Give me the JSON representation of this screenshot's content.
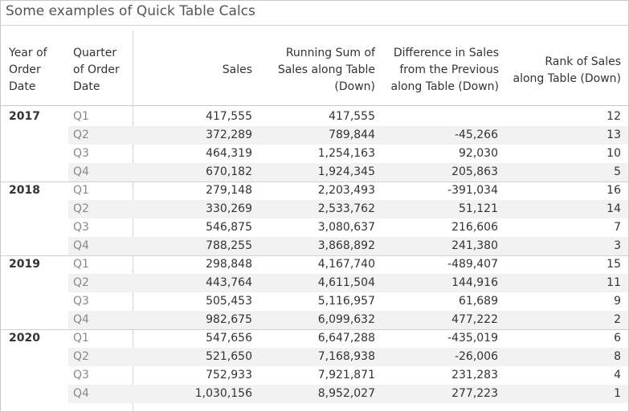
{
  "title": "Some examples of Quick Table Calcs",
  "headers": {
    "year": [
      "Year of",
      "Order",
      "Date"
    ],
    "quarter": [
      "Quarter",
      "of Order",
      "Date"
    ],
    "sales": [
      "Sales"
    ],
    "running_sum": [
      "Running Sum of",
      "Sales along Table",
      "(Down)"
    ],
    "difference": [
      "Difference in Sales",
      "from the Previous",
      "along Table (Down)"
    ],
    "rank": [
      "Rank of Sales",
      "along Table (Down)"
    ]
  },
  "groups": [
    {
      "year": "2017",
      "rows": [
        {
          "quarter": "Q1",
          "sales": "417,555",
          "running_sum": "417,555",
          "difference": "",
          "rank": "12"
        },
        {
          "quarter": "Q2",
          "sales": "372,289",
          "running_sum": "789,844",
          "difference": "-45,266",
          "rank": "13"
        },
        {
          "quarter": "Q3",
          "sales": "464,319",
          "running_sum": "1,254,163",
          "difference": "92,030",
          "rank": "10"
        },
        {
          "quarter": "Q4",
          "sales": "670,182",
          "running_sum": "1,924,345",
          "difference": "205,863",
          "rank": "5"
        }
      ]
    },
    {
      "year": "2018",
      "rows": [
        {
          "quarter": "Q1",
          "sales": "279,148",
          "running_sum": "2,203,493",
          "difference": "-391,034",
          "rank": "16"
        },
        {
          "quarter": "Q2",
          "sales": "330,269",
          "running_sum": "2,533,762",
          "difference": "51,121",
          "rank": "14"
        },
        {
          "quarter": "Q3",
          "sales": "546,875",
          "running_sum": "3,080,637",
          "difference": "216,606",
          "rank": "7"
        },
        {
          "quarter": "Q4",
          "sales": "788,255",
          "running_sum": "3,868,892",
          "difference": "241,380",
          "rank": "3"
        }
      ]
    },
    {
      "year": "2019",
      "rows": [
        {
          "quarter": "Q1",
          "sales": "298,848",
          "running_sum": "4,167,740",
          "difference": "-489,407",
          "rank": "15"
        },
        {
          "quarter": "Q2",
          "sales": "443,764",
          "running_sum": "4,611,504",
          "difference": "144,916",
          "rank": "11"
        },
        {
          "quarter": "Q3",
          "sales": "505,453",
          "running_sum": "5,116,957",
          "difference": "61,689",
          "rank": "9"
        },
        {
          "quarter": "Q4",
          "sales": "982,675",
          "running_sum": "6,099,632",
          "difference": "477,222",
          "rank": "2"
        }
      ]
    },
    {
      "year": "2020",
      "rows": [
        {
          "quarter": "Q1",
          "sales": "547,656",
          "running_sum": "6,647,288",
          "difference": "-435,019",
          "rank": "6"
        },
        {
          "quarter": "Q2",
          "sales": "521,650",
          "running_sum": "7,168,938",
          "difference": "-26,006",
          "rank": "8"
        },
        {
          "quarter": "Q3",
          "sales": "752,933",
          "running_sum": "7,921,871",
          "difference": "231,283",
          "rank": "4"
        },
        {
          "quarter": "Q4",
          "sales": "1,030,156",
          "running_sum": "8,952,027",
          "difference": "277,223",
          "rank": "1"
        }
      ]
    }
  ]
}
